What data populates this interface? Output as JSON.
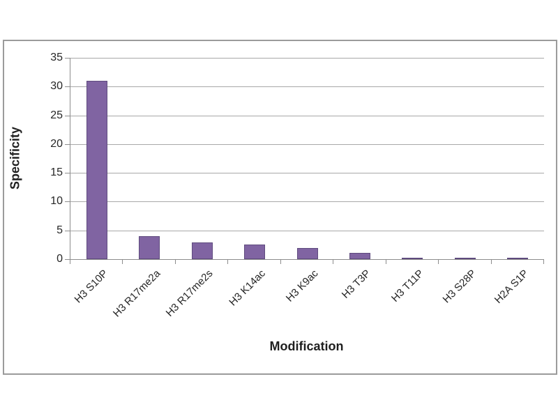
{
  "chart_data": {
    "type": "bar",
    "title": "",
    "categories": [
      "H3 S10P",
      "H3 R17me2a",
      "H3 R17me2s",
      "H3 K14ac",
      "H3 K9ac",
      "H3 T3P",
      "H3 T11P",
      "H3 S28P",
      "H2A S1P"
    ],
    "values": [
      31,
      4,
      2.9,
      2.5,
      1.9,
      1.1,
      0.25,
      0.25,
      0.25
    ],
    "xlabel": "Modification",
    "ylabel": "Specificity",
    "ylim": [
      0,
      35
    ],
    "yticks": [
      0,
      5,
      10,
      15,
      20,
      25,
      30,
      35
    ],
    "grid": true,
    "legend": false,
    "colors": {
      "bar_fill": "#8064A2",
      "bar_border": "#5F4B7E",
      "gridline": "#A8A8A8",
      "axis_line": "#8C8C8C",
      "tick_text": "#262626",
      "axis_title_text": "#1F1F1F",
      "frame_border": "#9B9B9B",
      "background": "#FFFFFF"
    }
  }
}
